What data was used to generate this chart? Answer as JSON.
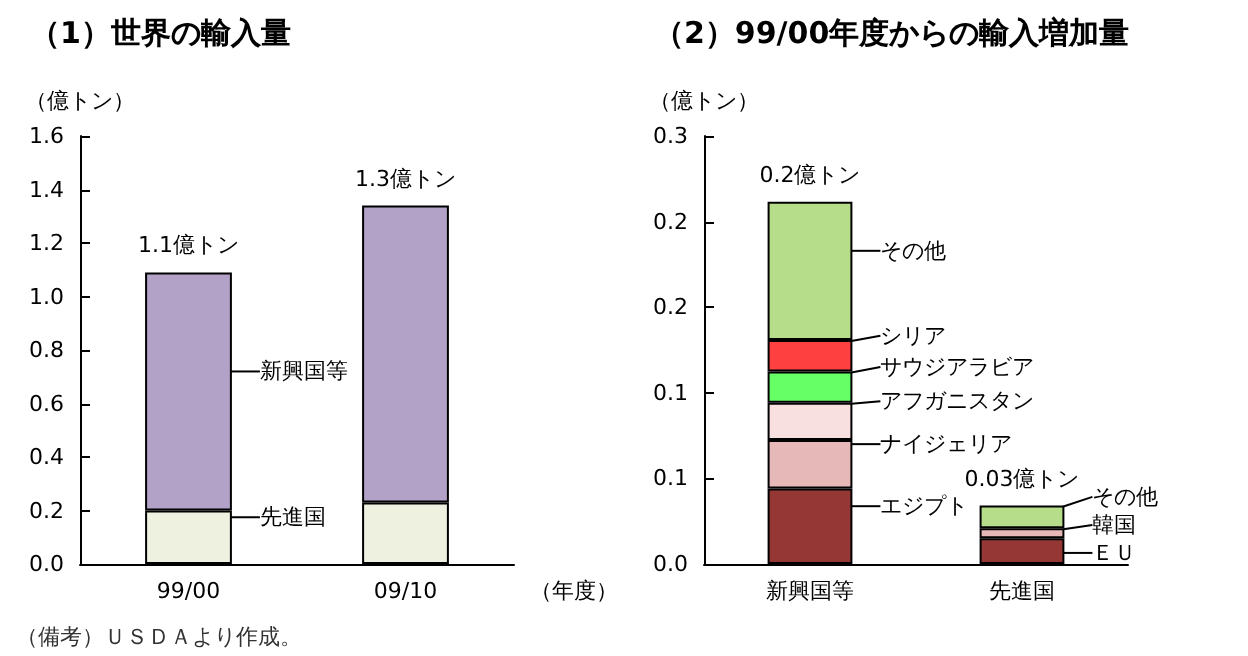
{
  "chart_data": [
    {
      "type": "bar",
      "title": "（1）世界の輸入量",
      "ylabel": "（億トン）",
      "xlabel": "（年度）",
      "categories": [
        "99/00",
        "09/10"
      ],
      "stacked": true,
      "series": [
        {
          "name": "先進国",
          "color": "#eef0e0",
          "values": [
            0.2,
            0.23
          ]
        },
        {
          "name": "新興国等",
          "color": "#b3a2c7",
          "values": [
            0.89,
            1.11
          ]
        }
      ],
      "totals": [
        "1.1億トン",
        "1.3億トン"
      ],
      "ylim": [
        0,
        1.6
      ],
      "yticks": [
        {
          "value": 0,
          "label": "0.0"
        },
        {
          "value": 0.2,
          "label": "0.2"
        },
        {
          "value": 0.4,
          "label": "0.4"
        },
        {
          "value": 0.6,
          "label": "0.6"
        },
        {
          "value": 0.8,
          "label": "0.8"
        },
        {
          "value": 1,
          "label": "1.0"
        },
        {
          "value": 1.2,
          "label": "1.2"
        },
        {
          "value": 1.4,
          "label": "1.4"
        },
        {
          "value": 1.6,
          "label": "1.6"
        }
      ],
      "grid": false,
      "legend": "center",
      "annotations": [
        "（備考）ＵＳＤＡより作成。"
      ]
    },
    {
      "type": "bar",
      "title": "（2）99/00年度からの輸入増加量",
      "ylabel": "（億トン）",
      "categories": [
        "新興国等",
        "先進国"
      ],
      "stacked": true,
      "series": [
        {
          "name": "エジプト",
          "color": "#953735",
          "values": [
            0.053,
            null
          ]
        },
        {
          "name": "ナイジェリア",
          "color": "#e6b9b8",
          "values": [
            0.034,
            null
          ]
        },
        {
          "name": "アフガニスタン",
          "color": "#f8e0e0",
          "values": [
            0.026,
            null
          ]
        },
        {
          "name": "サウジアラビア",
          "color": "#66ff66",
          "values": [
            0.022,
            null
          ]
        },
        {
          "name": "シリア",
          "color": "#ff4040",
          "values": [
            0.022,
            null
          ]
        },
        {
          "name": "その他",
          "color": "#b5dd8a",
          "values": [
            0.097,
            null
          ]
        },
        {
          "name": "ＥＵ",
          "color": "#953735",
          "values": [
            null,
            0.018
          ]
        },
        {
          "name": "韓国",
          "color": "#e6b9b8",
          "values": [
            null,
            0.007
          ]
        },
        {
          "name": "その他",
          "color": "#b5dd8a",
          "values": [
            null,
            0.016
          ]
        }
      ],
      "totals": [
        "0.2億トン",
        "0.03億トン"
      ],
      "ylim": [
        0,
        0.3
      ],
      "yticks": [
        {
          "value": 0,
          "label": "0.0"
        },
        {
          "value": 0.06,
          "label": "0.1"
        },
        {
          "value": 0.12,
          "label": "0.1"
        },
        {
          "value": 0.18,
          "label": "0.2"
        },
        {
          "value": 0.24,
          "label": "0.2"
        },
        {
          "value": 0.3,
          "label": "0.3"
        }
      ],
      "grid": false,
      "legend": "right"
    }
  ]
}
